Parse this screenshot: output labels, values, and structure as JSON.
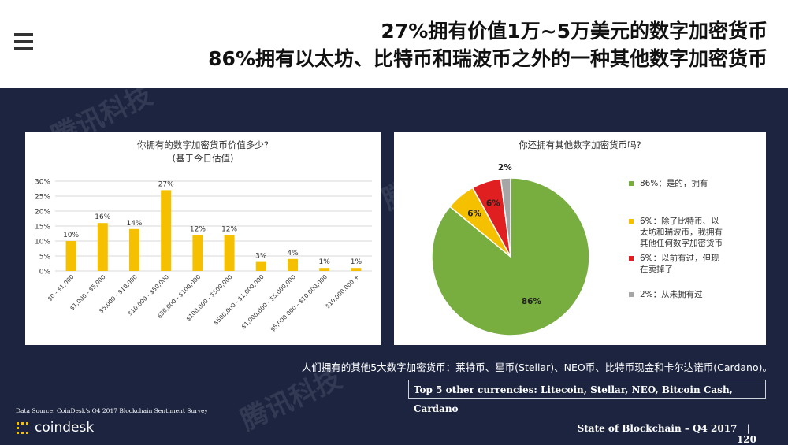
{
  "colors": {
    "bar": "#f5c000",
    "pie_green": "#78ad40",
    "pie_yellow": "#f5c000",
    "pie_red": "#e02020",
    "pie_gray": "#a6a6a6",
    "background": "#1c2440",
    "grid": "#d9d9d9"
  },
  "header": {
    "menu_icon": "hamburger-menu-icon",
    "title_line1": "27%拥有价值1万~5万美元的数字加密货币",
    "title_line2": "86%拥有以太坊、比特币和瑞波币之外的一种其他数字加密货币"
  },
  "watermark": "腾讯科技",
  "chart_data": [
    {
      "type": "bar",
      "title": "你拥有的数字加密货币价值多少?",
      "subtitle": "(基于今日估值)",
      "categories": [
        "$0 - $1,000",
        "$1,000 - $5,000",
        "$5,000 - $10,000",
        "$10,000 - $50,000",
        "$50,000 - $100,000",
        "$100,000 - $500,000",
        "$500,000 - $1,000,000",
        "$1,000,000 - $5,000,000",
        "$5,000,000 - $10,000,000",
        "$10,000,000 +"
      ],
      "values": [
        10,
        16,
        14,
        27,
        12,
        12,
        3,
        4,
        1,
        1
      ],
      "data_labels": [
        "10%",
        "16%",
        "14%",
        "27%",
        "12%",
        "12%",
        "3%",
        "4%",
        "1%",
        "1%"
      ],
      "ylim": [
        0,
        30
      ],
      "y_ticks": [
        "0%",
        "5%",
        "10%",
        "15%",
        "20%",
        "25%",
        "30%"
      ],
      "grid": true
    },
    {
      "type": "pie",
      "title": "你还拥有其他数字加密货币吗?",
      "slices": [
        {
          "name": "86%：是的，拥有",
          "value": 86,
          "label": "86%",
          "color": "#78ad40"
        },
        {
          "name": "6%：除了比特币、以太坊和瑞波币，我拥有其他任何数字加密货币",
          "value": 6,
          "label": "6%",
          "color": "#f5c000"
        },
        {
          "name": "6%：以前有过，但现在卖掉了",
          "value": 6,
          "label": "6%",
          "color": "#e02020"
        },
        {
          "name": "2%：从未拥有过",
          "value": 2,
          "label": "2%",
          "color": "#a6a6a6"
        }
      ],
      "legend_position": "right"
    }
  ],
  "legend": {
    "item1": "86%：是的，拥有",
    "item2_line1": "6%：除了比特币、以",
    "item2_line2": "太坊和瑞波币，我拥有",
    "item2_line3": "其他任何数字加密货币",
    "item3_line1": "6%：以前有过，但现",
    "item3_line2": "在卖掉了",
    "item4": "2%：从未拥有过"
  },
  "notes": {
    "chinese": "人们拥有的其他5大数字加密货币：莱特币、星币(Stellar)、NEO币、比特币现金和卡尔达诺币(Cardano)。",
    "english": "Top 5 other currencies: Litecoin, Stellar, NEO, Bitcoin Cash, Cardano"
  },
  "footer": {
    "source": "Data Source: CoinDesk's Q4 2017 Blockchain Sentiment Survey",
    "logo_text": "coindesk",
    "report": "State of Blockchain – Q4 2017",
    "separator": "|",
    "page": "120"
  }
}
